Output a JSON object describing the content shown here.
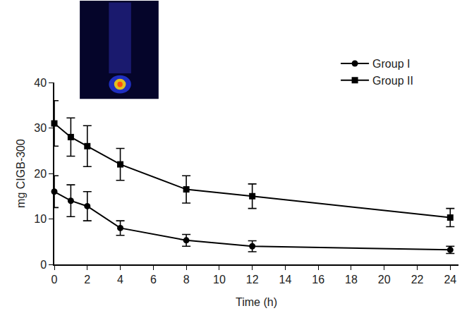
{
  "chart_data": {
    "type": "line",
    "x_label": "Time (h)",
    "y_label": "mg CIGB-300",
    "x": [
      0,
      1,
      2,
      4,
      8,
      12,
      24
    ],
    "series": [
      {
        "name": "Group I",
        "color": "#000000",
        "marker": "circle",
        "values": [
          16,
          14,
          12.8,
          8,
          5.3,
          4,
          3.2
        ],
        "error": [
          3.5,
          3.5,
          3.2,
          1.6,
          1.3,
          1.2,
          0.8
        ]
      },
      {
        "name": "Group II",
        "color": "#000000",
        "marker": "square",
        "values": [
          31,
          28,
          26,
          22,
          16.5,
          15,
          10.3
        ],
        "error": [
          5,
          4.2,
          4.5,
          3.5,
          3,
          2.7,
          2
        ]
      }
    ],
    "xlim": [
      0,
      24.5
    ],
    "xticks": [
      0,
      2,
      4,
      6,
      8,
      10,
      12,
      14,
      16,
      18,
      20,
      22,
      24
    ],
    "ylim": [
      0,
      40
    ],
    "yticks": [
      0,
      10,
      20,
      30,
      40
    ],
    "grid": false,
    "legend": "top right"
  }
}
